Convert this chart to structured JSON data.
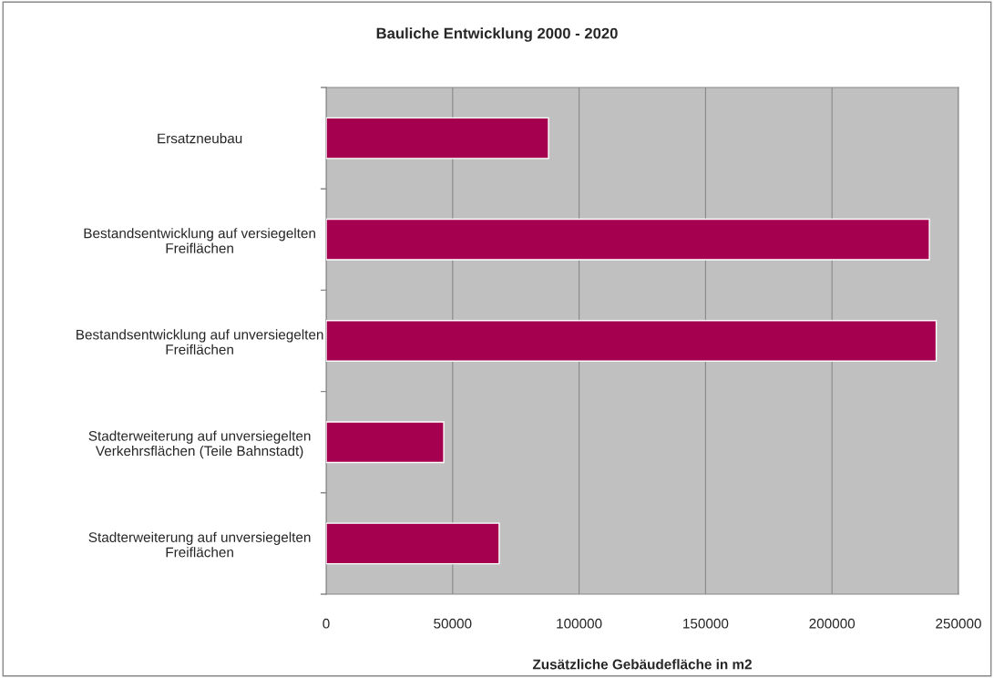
{
  "chart_data": {
    "type": "bar",
    "orientation": "horizontal",
    "title": "Bauliche Entwicklung 2000 - 2020",
    "xlabel": "Zusätzliche Gebäudefläche in m2",
    "categories": [
      "Ersatzneubau",
      "Bestandsentwicklung auf versiegelten\nFreiflächen",
      "Bestandsentwicklung auf unversiegelten\nFreiflächen",
      "Stadterweiterung auf unversiegelten\nVerkehrsflächen (Teile Bahnstadt)",
      "Stadterweiterung auf unversiegelten\nFreiflächen"
    ],
    "values": [
      87900,
      238500,
      241200,
      46500,
      68400
    ],
    "color": "#a50050",
    "xlim": [
      0,
      250000
    ],
    "xticks": [
      0,
      50000,
      100000,
      150000,
      200000,
      250000
    ],
    "grid": "x",
    "legend": false
  }
}
